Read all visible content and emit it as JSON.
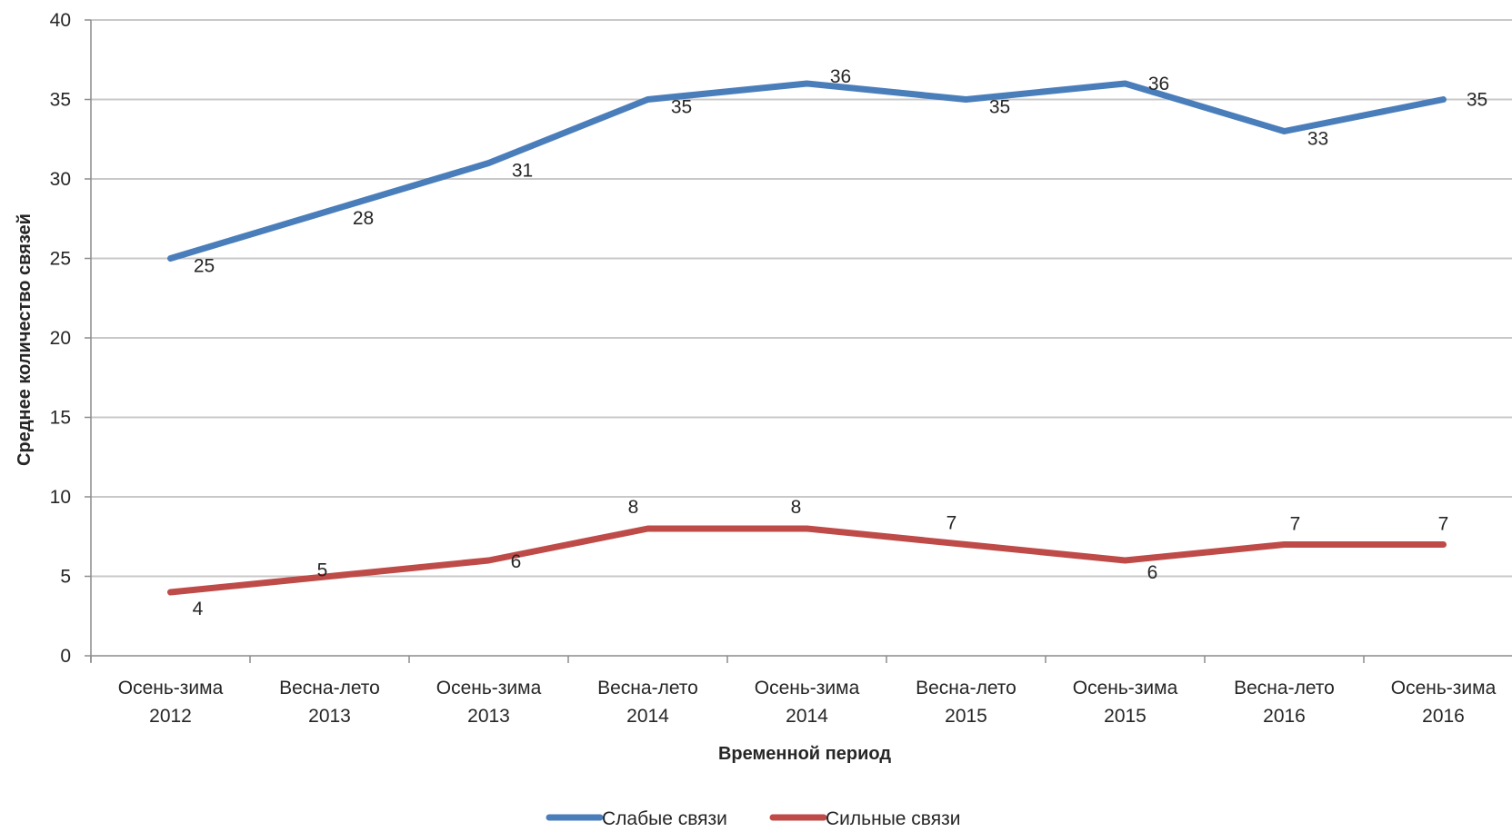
{
  "chart_data": {
    "type": "line",
    "title": "",
    "xlabel": "Временной период",
    "ylabel": "Среднее количество связей",
    "ylim": [
      0,
      40
    ],
    "yticks": [
      0,
      5,
      10,
      15,
      20,
      25,
      30,
      35,
      40
    ],
    "grid": true,
    "legend_position": "bottom",
    "categories": [
      [
        "Осень-зима",
        "2012"
      ],
      [
        "Весна-лето",
        "2013"
      ],
      [
        "Осень-зима",
        "2013"
      ],
      [
        "Весна-лето",
        "2014"
      ],
      [
        "Осень-зима",
        "2014"
      ],
      [
        "Весна-лето",
        "2015"
      ],
      [
        "Осень-зима",
        "2015"
      ],
      [
        "Весна-лето",
        "2016"
      ],
      [
        "Осень-зима",
        "2016"
      ]
    ],
    "series": [
      {
        "name": "Слабые связи",
        "color": "#4a7ebb",
        "values": [
          25,
          28,
          31,
          35,
          36,
          35,
          36,
          33,
          35
        ]
      },
      {
        "name": "Сильные связи",
        "color": "#be4b48",
        "values": [
          4,
          5,
          6,
          8,
          8,
          7,
          6,
          7,
          7
        ]
      }
    ]
  }
}
